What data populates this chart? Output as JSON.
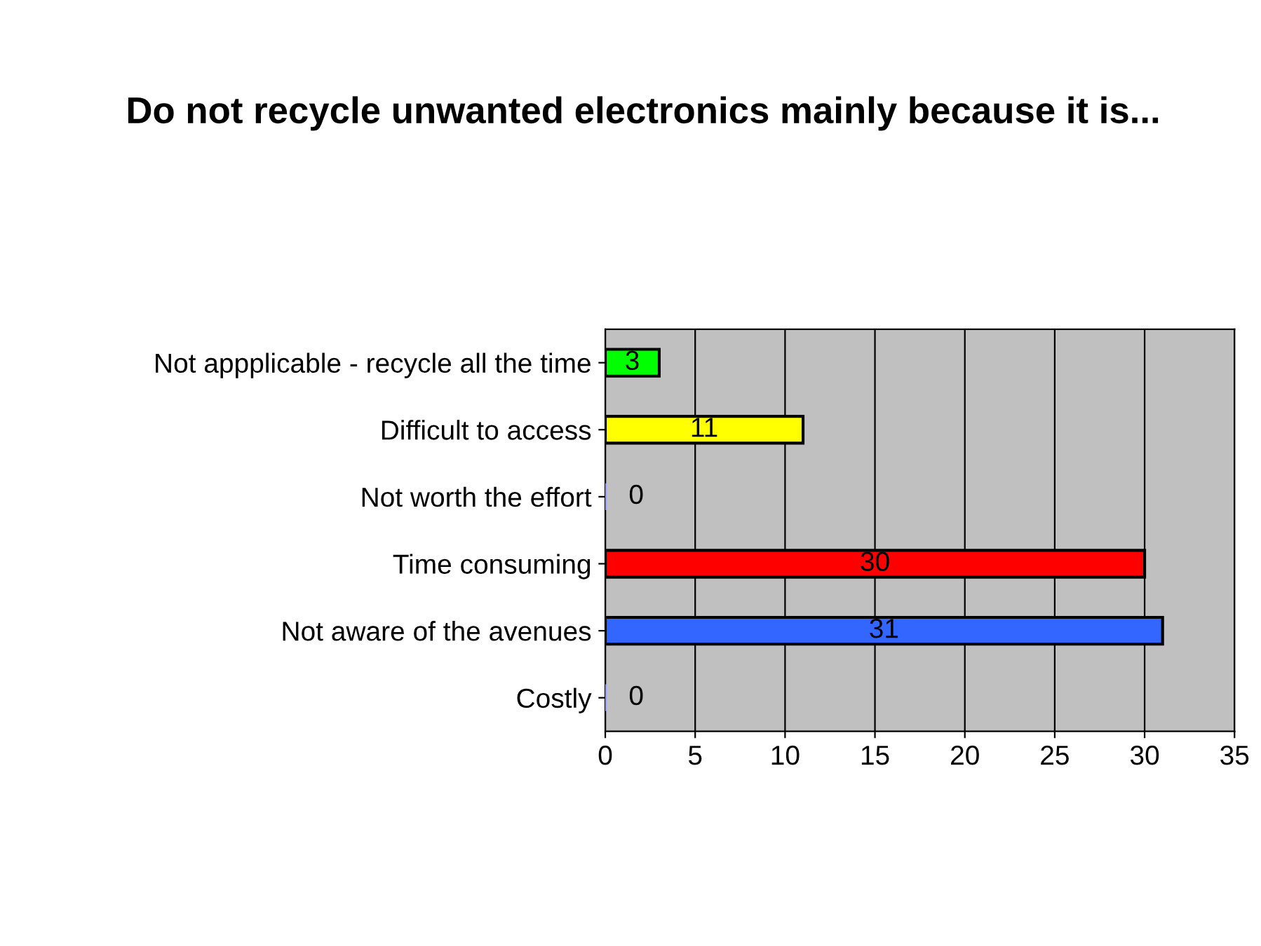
{
  "chart_data": {
    "type": "bar",
    "orientation": "horizontal",
    "title": "Do not recycle unwanted electronics mainly because it is...",
    "categories": [
      "Not appplicable - recycle all the time",
      "Difficult to access",
      "Not worth the effort",
      "Time consuming",
      "Not aware of the avenues",
      "Costly"
    ],
    "values": [
      3,
      11,
      0,
      30,
      31,
      0
    ],
    "colors": [
      "#00ff00",
      "#ffff00",
      "#9999ff",
      "#ff0000",
      "#3366ff",
      "#9999ff"
    ],
    "xlim": [
      0,
      35
    ],
    "xticks": [
      0,
      5,
      10,
      15,
      20,
      25,
      30,
      35
    ],
    "grid": "x",
    "data_labels": true
  }
}
